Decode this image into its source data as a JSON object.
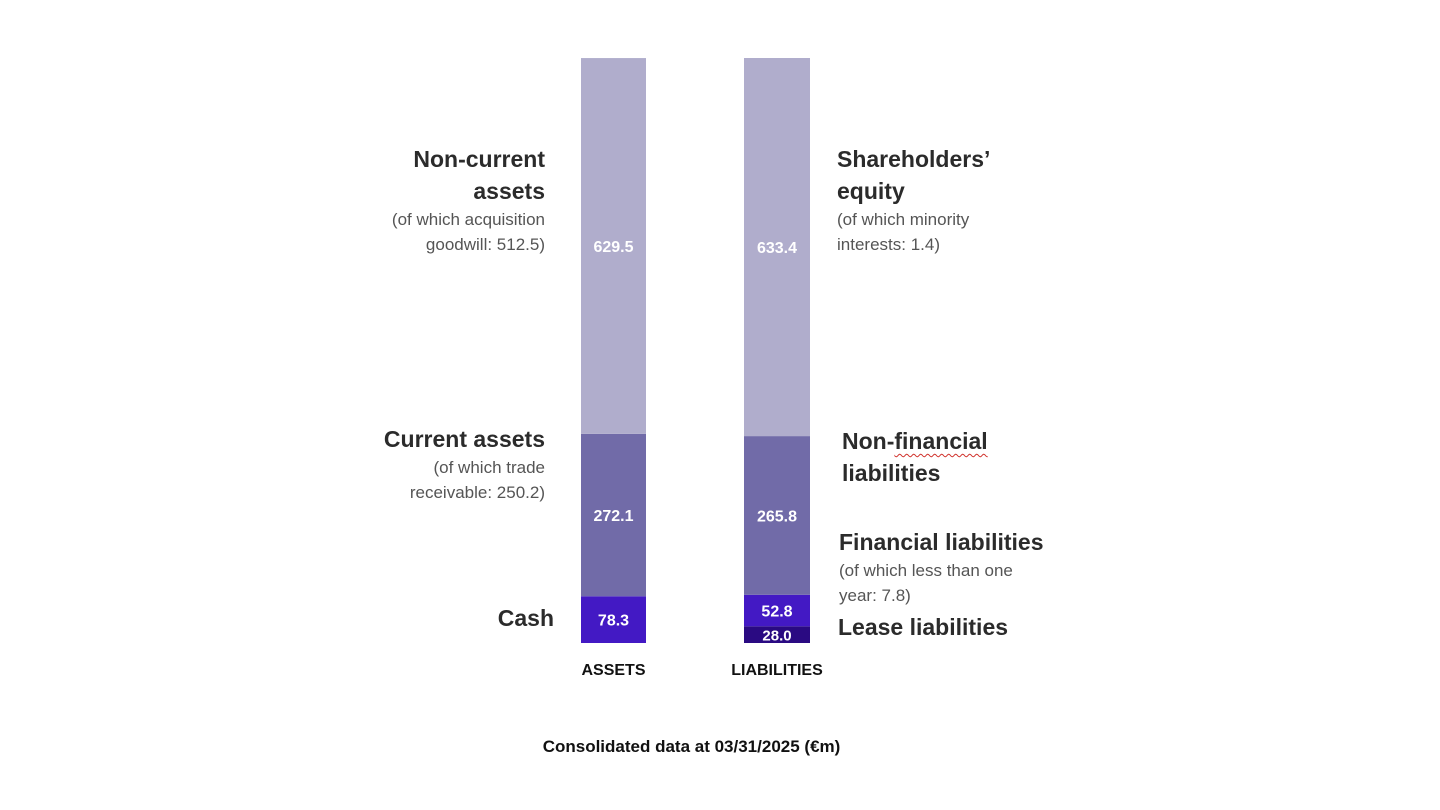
{
  "chart_data": {
    "type": "bar",
    "stacked": true,
    "categories": [
      "ASSETS",
      "LIABILITIES"
    ],
    "series": [
      {
        "column": "ASSETS",
        "segments": [
          {
            "value": 78.3,
            "label": "78.3",
            "color": "#4319c4"
          },
          {
            "value": 272.1,
            "label": "272.1",
            "color": "#716ba8"
          },
          {
            "value": 629.5,
            "label": "629.5",
            "color": "#b0adcc"
          }
        ]
      },
      {
        "column": "LIABILITIES",
        "segments": [
          {
            "value": 28.0,
            "label": "28.0",
            "color": "#2a0a82"
          },
          {
            "value": 52.8,
            "label": "52.8",
            "color": "#4319c4"
          },
          {
            "value": 265.8,
            "label": "265.8",
            "color": "#716ba8"
          },
          {
            "value": 633.4,
            "label": "633.4",
            "color": "#b0adcc"
          }
        ]
      }
    ],
    "footer": "Consolidated data at 03/31/2025 (€m)"
  },
  "annotations": {
    "non_current_title_1": "Non-current",
    "non_current_title_2": "assets",
    "non_current_sub_1": "(of which acquisition",
    "non_current_sub_2": "goodwill: 512.5)",
    "current_title": "Current assets",
    "current_sub_1": "(of which trade",
    "current_sub_2": "receivable: 250.2)",
    "cash_title": "Cash",
    "equity_title_1": "Shareholders’",
    "equity_title_2": "equity",
    "equity_sub_1": "(of which minority",
    "equity_sub_2": "interests: 1.4)",
    "nonfin_title_1a": "Non-",
    "nonfin_title_1b": "financial",
    "nonfin_title_2": "liabilities",
    "fin_title": "Financial liabilities",
    "fin_sub_1": "(of which less than one",
    "fin_sub_2": "year: 7.8)",
    "lease_title": "Lease liabilities"
  }
}
